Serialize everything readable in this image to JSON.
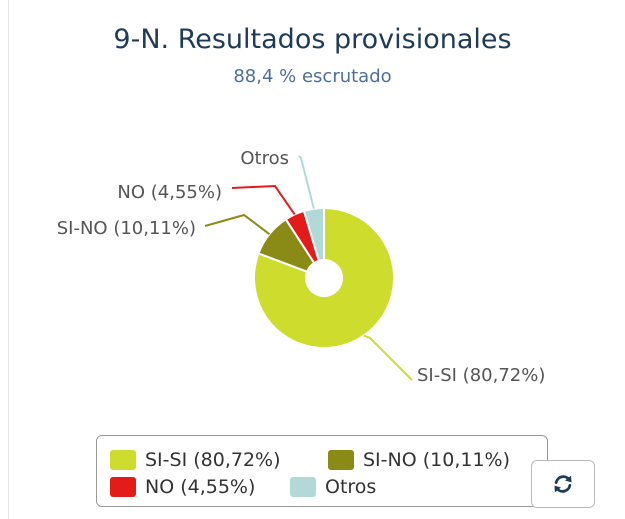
{
  "chart_data": {
    "type": "pie",
    "title": "9-N. Resultados provisionales",
    "subtitle": "88,4 % escrutado",
    "slices": [
      {
        "label": "SI-SI",
        "value": 80.72,
        "display": "SI-SI (80,72%)",
        "color": "#cddc2d"
      },
      {
        "label": "SI-NO",
        "value": 10.11,
        "display": "SI-NO (10,11%)",
        "color": "#8a8a16"
      },
      {
        "label": "NO",
        "value": 4.55,
        "display": "NO (4,55%)",
        "color": "#e31b1b"
      },
      {
        "label": "Otros",
        "value": 4.62,
        "display": "Otros",
        "color": "#b2d8d8"
      }
    ],
    "legend_position": "bottom"
  },
  "controls": {
    "refresh_icon": "refresh-icon"
  }
}
